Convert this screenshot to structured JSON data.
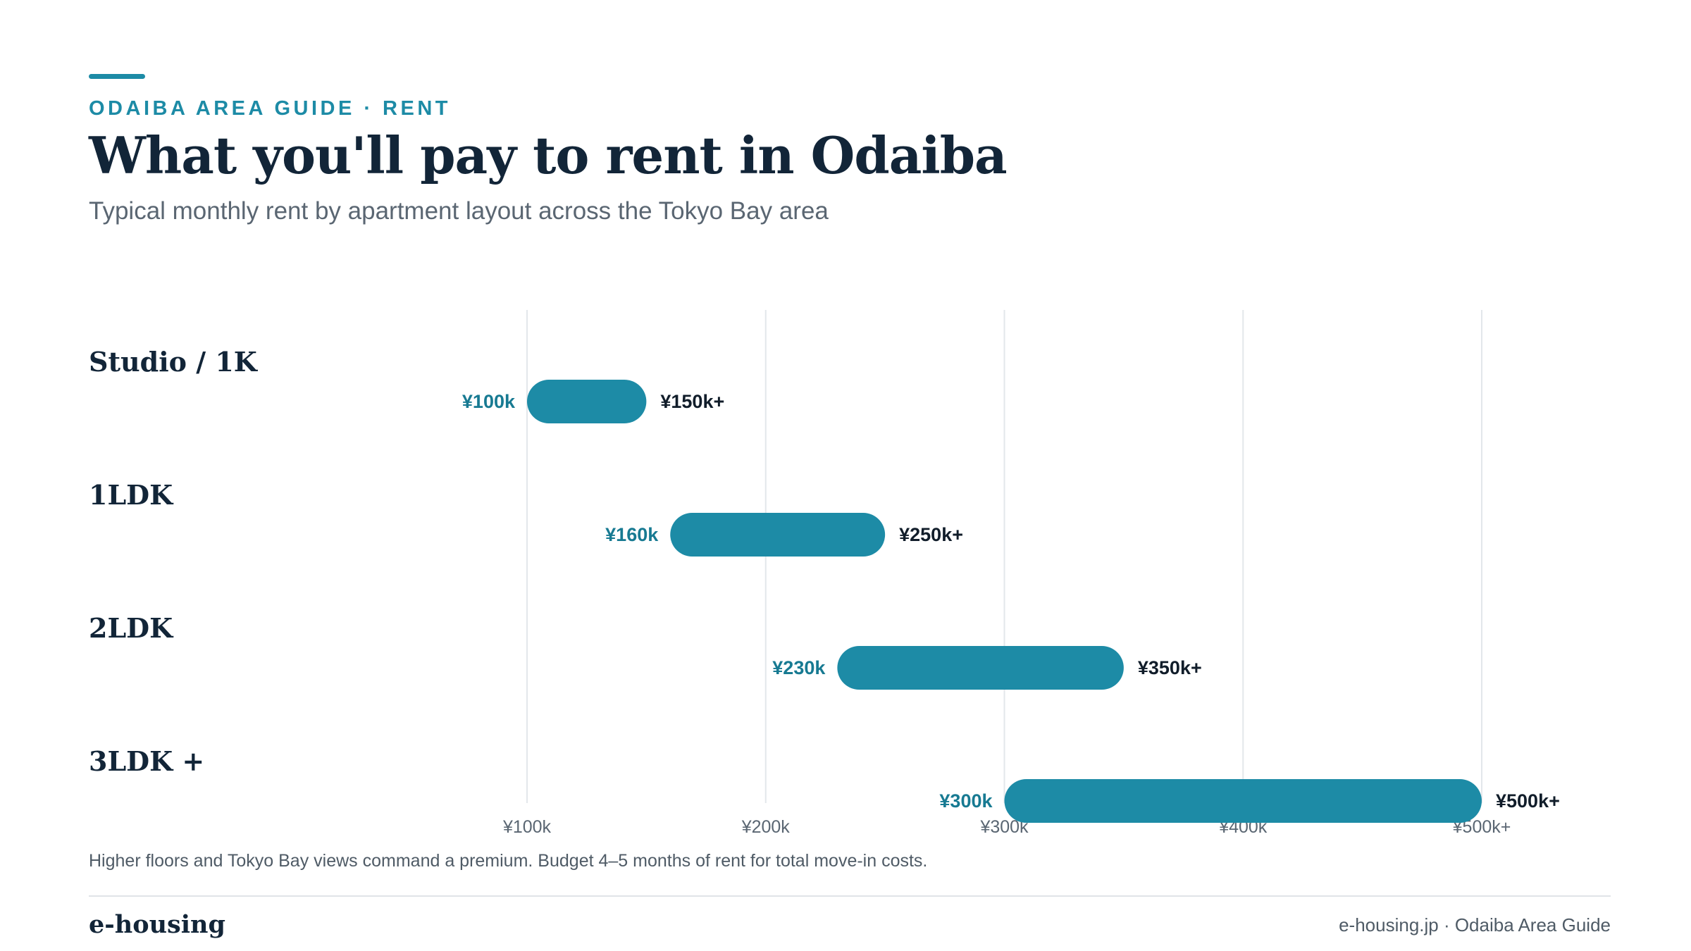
{
  "header": {
    "eyebrow": "ODAIBA AREA GUIDE · RENT",
    "title": "What you'll pay to rent in Odaiba",
    "subtitle": "Typical monthly rent by apartment layout across the Tokyo Bay area"
  },
  "colors": {
    "accent": "#1d8ba6",
    "min_label": "#177a92",
    "gridline": "#e3e7eb"
  },
  "chart_data": {
    "type": "bar",
    "subtype": "range",
    "categories": [
      "Studio / 1K",
      "1LDK",
      "2LDK",
      "3LDK +"
    ],
    "ranges": [
      {
        "min": 100,
        "max": 150,
        "min_label": "¥100k",
        "max_label": "¥150k+"
      },
      {
        "min": 160,
        "max": 250,
        "min_label": "¥160k",
        "max_label": "¥250k+"
      },
      {
        "min": 230,
        "max": 350,
        "min_label": "¥230k",
        "max_label": "¥350k+"
      },
      {
        "min": 300,
        "max": 500,
        "min_label": "¥300k",
        "max_label": "¥500k+"
      }
    ],
    "x_ticks": [
      100,
      200,
      300,
      400,
      500
    ],
    "x_tick_labels": [
      "¥100k",
      "¥200k",
      "¥300k",
      "¥400k",
      "¥500k+"
    ],
    "xlim": [
      100,
      500
    ],
    "unit": "thousand yen per month",
    "grid": true
  },
  "footnote": "Higher floors and Tokyo Bay views command a premium. Budget 4–5 months of rent for total move-in costs.",
  "footer": {
    "brand": "e-housing",
    "source": "e-housing.jp · Odaiba Area Guide"
  }
}
